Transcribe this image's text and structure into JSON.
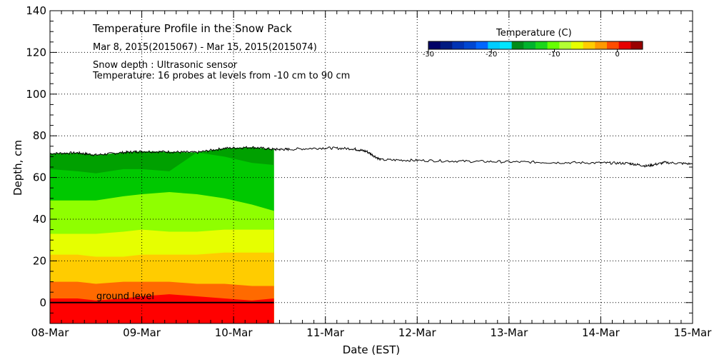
{
  "chart_data": {
    "type": "area",
    "title": "Temperature Profile in the Snow Pack",
    "date_range": "Mar  8, 2015(2015067) - Mar 15, 2015(2015074)",
    "notes": [
      "Snow depth : Ultrasonic sensor",
      "Temperature: 16 probes at levels from -10 cm to 90 cm"
    ],
    "xlabel": "Date (EST)",
    "ylabel": "Depth, cm",
    "x_ticks": [
      "08-Mar",
      "09-Mar",
      "10-Mar",
      "11-Mar",
      "12-Mar",
      "13-Mar",
      "14-Mar",
      "15-Mar"
    ],
    "xlim": [
      0,
      7
    ],
    "ylim": [
      -10,
      140
    ],
    "y_ticks": [
      0,
      20,
      40,
      60,
      80,
      100,
      120,
      140
    ],
    "ground_level_label": "ground level",
    "ground_level_y": 0,
    "colorbar": {
      "title": "Temperature (C)",
      "min": -30,
      "max": 4,
      "tick_values": [
        -30,
        -20,
        -10,
        0
      ],
      "tick_labels": [
        "-30",
        "-20",
        "-10",
        "0"
      ],
      "colors": [
        "#000066",
        "#001a80",
        "#0033b3",
        "#0047d1",
        "#0066ff",
        "#00ccff",
        "#00e6ff",
        "#008c1a",
        "#00b32d",
        "#1ad61a",
        "#66ff00",
        "#b3ff33",
        "#e6ff00",
        "#ffcc00",
        "#ff9900",
        "#ff4d00",
        "#e60000",
        "#990000"
      ]
    },
    "temperature_end_day": 2.44,
    "snow_depth_series": {
      "days": [
        0,
        0.3,
        0.5,
        0.8,
        1.0,
        1.3,
        1.6,
        1.9,
        2.2,
        2.44,
        2.6,
        3.0,
        3.3,
        3.45,
        3.6,
        4.0,
        4.5,
        5.0,
        5.5,
        6.0,
        6.3,
        6.5,
        6.7,
        7.0
      ],
      "depth": [
        71.5,
        71.8,
        70.8,
        72.0,
        72.5,
        72.3,
        72.0,
        74.0,
        74.5,
        73.5,
        73.5,
        74.2,
        73.8,
        72.5,
        68.5,
        68.2,
        67.8,
        67.5,
        67.2,
        67.0,
        66.8,
        65.5,
        67.2,
        66.5
      ]
    },
    "temperature_bands": [
      {
        "temp": 0,
        "color": "#ff0000",
        "top": [
          2,
          2,
          1,
          2,
          3,
          4,
          3,
          2,
          1,
          2
        ]
      },
      {
        "temp": -1,
        "color": "#ff6a00",
        "top": [
          10,
          10,
          9,
          10,
          10,
          10,
          9,
          9,
          8,
          8
        ]
      },
      {
        "temp": -3,
        "color": "#ffcc00",
        "top": [
          23,
          23,
          22,
          22,
          23,
          23,
          23,
          24,
          24,
          24
        ]
      },
      {
        "temp": -5,
        "color": "#e6ff00",
        "top": [
          33,
          33,
          33,
          34,
          35,
          34,
          34,
          35,
          35,
          35
        ]
      },
      {
        "temp": -7,
        "color": "#8fff00",
        "top": [
          49,
          49,
          49,
          51,
          52,
          53,
          52,
          50,
          47,
          44
        ]
      },
      {
        "temp": -9,
        "color": "#00c800",
        "top": [
          64,
          63,
          62,
          64,
          64,
          63,
          72,
          70,
          67,
          66
        ]
      },
      {
        "temp": -11,
        "color": "#00a000",
        "top": [
          71.5,
          71.8,
          70.8,
          72,
          72.5,
          72.3,
          72,
          74,
          74.5,
          73.5
        ]
      }
    ],
    "band_days": [
      0,
      0.3,
      0.5,
      0.8,
      1.0,
      1.3,
      1.6,
      1.9,
      2.2,
      2.44
    ]
  }
}
